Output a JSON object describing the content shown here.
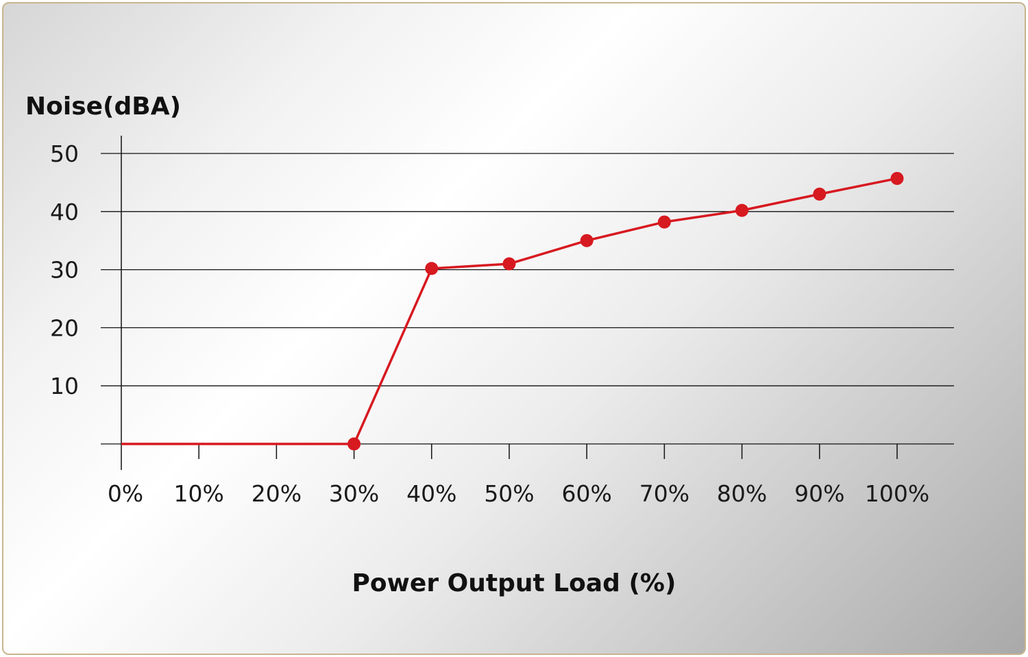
{
  "chart_data": {
    "type": "line",
    "ylabel": "Noise(dBA)",
    "xlabel": "Power Output Load (%)",
    "x": [
      0,
      10,
      20,
      30,
      40,
      50,
      60,
      70,
      80,
      90,
      100
    ],
    "x_tick_labels": [
      "0%",
      "10%",
      "20%",
      "30%",
      "40%",
      "50%",
      "60%",
      "70%",
      "80%",
      "90%",
      "100%"
    ],
    "y_ticks": [
      0,
      10,
      20,
      30,
      40,
      50
    ],
    "y_tick_labels": [
      "",
      "10",
      "20",
      "30",
      "40",
      "50"
    ],
    "ylim": [
      0,
      50
    ],
    "xlim": [
      0,
      100
    ],
    "grid": "horizontal",
    "series": [
      {
        "points": [
          {
            "x": 0,
            "y": 0,
            "marker": false
          },
          {
            "x": 30,
            "y": 0,
            "marker": true
          },
          {
            "x": 40,
            "y": 30.2,
            "marker": true
          },
          {
            "x": 50,
            "y": 31,
            "marker": true
          },
          {
            "x": 60,
            "y": 35,
            "marker": true
          },
          {
            "x": 70,
            "y": 38.2,
            "marker": true
          },
          {
            "x": 80,
            "y": 40.2,
            "marker": true
          },
          {
            "x": 90,
            "y": 43,
            "marker": true
          },
          {
            "x": 100,
            "y": 45.7,
            "marker": true
          }
        ],
        "color": "#d71920"
      }
    ],
    "colors": {
      "line": "#d71920",
      "axis": "#111111"
    }
  }
}
